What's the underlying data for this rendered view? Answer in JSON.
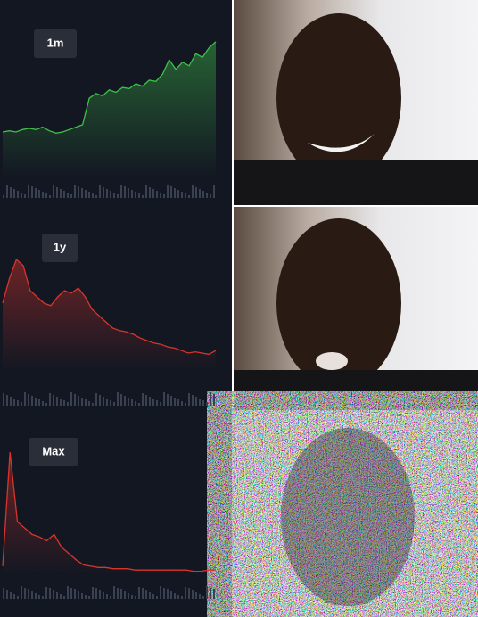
{
  "panels": [
    {
      "label": "1m",
      "color": "#3fbf4a",
      "ylim": [
        0,
        100
      ],
      "values": [
        20,
        21,
        20,
        22,
        23,
        22,
        24,
        21,
        19,
        20,
        22,
        24,
        26,
        48,
        52,
        50,
        55,
        53,
        57,
        56,
        60,
        58,
        63,
        62,
        68,
        80,
        72,
        78,
        75,
        85,
        82,
        90,
        95
      ]
    },
    {
      "label": "1y",
      "color": "#d8342c",
      "ylim": [
        0,
        100
      ],
      "values": [
        50,
        70,
        85,
        80,
        60,
        55,
        50,
        48,
        55,
        60,
        58,
        62,
        55,
        45,
        40,
        35,
        30,
        28,
        27,
        25,
        22,
        20,
        18,
        17,
        15,
        14,
        12,
        10,
        11,
        10,
        9,
        12
      ]
    },
    {
      "label": "Max",
      "color": "#d8342c",
      "ylim": [
        0,
        100
      ],
      "values": [
        5,
        95,
        40,
        35,
        30,
        28,
        25,
        30,
        20,
        15,
        10,
        6,
        5,
        4,
        4,
        3,
        3,
        3,
        2,
        2,
        2,
        2,
        2,
        2,
        2,
        2,
        1,
        1,
        2,
        2
      ]
    }
  ]
}
